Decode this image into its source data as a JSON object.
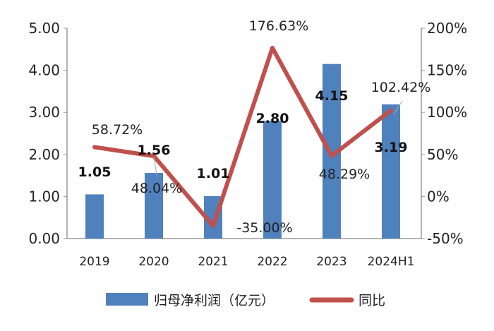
{
  "chart_data": {
    "type": "bar+line",
    "categories": [
      "2019",
      "2020",
      "2021",
      "2022",
      "2023",
      "2024H1"
    ],
    "series": [
      {
        "name": "归母净利润（亿元）",
        "type": "bar",
        "axis": "left",
        "values": [
          1.05,
          1.56,
          1.01,
          2.8,
          4.15,
          3.19
        ],
        "labels": [
          "1.05",
          "1.56",
          "1.01",
          "2.80",
          "4.15",
          "3.19"
        ],
        "color": "#4F81BD"
      },
      {
        "name": "同比",
        "type": "line",
        "axis": "right",
        "values": [
          58.72,
          48.04,
          -35.0,
          176.63,
          48.29,
          102.42
        ],
        "labels": [
          "58.72%",
          "48.04%",
          "-35.00%",
          "176.63%",
          "48.29%",
          "102.42%"
        ],
        "color": "#C0504D"
      }
    ],
    "left_axis": {
      "ylim": [
        0,
        5
      ],
      "ticks": [
        "0.00",
        "1.00",
        "2.00",
        "3.00",
        "4.00",
        "5.00"
      ]
    },
    "right_axis": {
      "ylim": [
        -50,
        200
      ],
      "ticks": [
        "-50%",
        "0%",
        "50%",
        "100%",
        "150%",
        "200%"
      ]
    },
    "grid": false,
    "legend": "bottom"
  }
}
